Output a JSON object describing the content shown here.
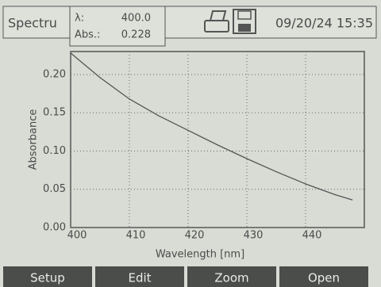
{
  "header": {
    "title": "Spectru",
    "lambda_label": "λ:",
    "lambda_value": "400.0",
    "abs_label": "Abs.:",
    "abs_value": "0.228",
    "datetime": "09/20/24 15:35"
  },
  "chart_data": {
    "type": "line",
    "x_label": "Wavelength [nm]",
    "y_label": "Absorbance",
    "x": [
      400,
      405,
      410,
      415,
      420,
      425,
      430,
      435,
      440,
      445,
      448
    ],
    "values": [
      0.228,
      0.196,
      0.168,
      0.146,
      0.127,
      0.108,
      0.09,
      0.073,
      0.057,
      0.043,
      0.036
    ],
    "color": "#555555",
    "xlim": [
      400,
      450
    ],
    "xticks": [
      400,
      410,
      420,
      430,
      440
    ],
    "ylim": [
      0,
      0.23
    ],
    "yticks": [
      {
        "value": 0,
        "label": "0.00"
      },
      0.05,
      {
        "value": 0.1,
        "label": "0.10"
      },
      0.15,
      {
        "value": 0.2,
        "label": "0.20"
      }
    ],
    "grid": true
  },
  "buttons": [
    "Setup",
    "Edit",
    "Zoom",
    "Open"
  ]
}
